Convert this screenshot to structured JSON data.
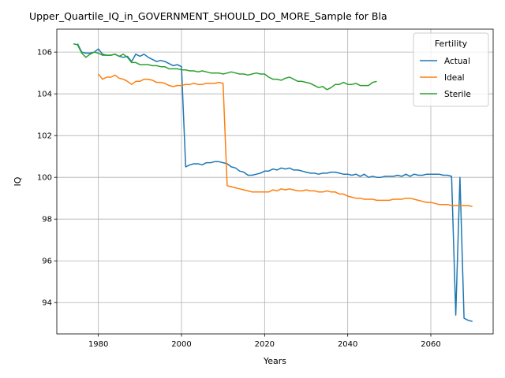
{
  "chart_data": {
    "type": "line",
    "title": "Upper_Quartile_IQ_in_GOVERNMENT_SHOULD_DO_MORE_Sample for Bla",
    "xlabel": "Years",
    "ylabel": "IQ",
    "xlim": [
      1970,
      2075
    ],
    "ylim": [
      92.5,
      107.1
    ],
    "x_ticks": [
      1980,
      2000,
      2020,
      2040,
      2060
    ],
    "y_ticks": [
      94,
      96,
      98,
      100,
      102,
      104,
      106
    ],
    "grid": true,
    "legend": {
      "title": "Fertility",
      "placement": "top-right"
    },
    "series": [
      {
        "name": "Actual",
        "color": "#1f77b4",
        "x": [
          1975,
          1976,
          1977,
          1978,
          1979,
          1980,
          1981,
          1982,
          1983,
          1984,
          1985,
          1986,
          1987,
          1988,
          1989,
          1990,
          1991,
          1992,
          1993,
          1994,
          1995,
          1996,
          1997,
          1998,
          1999,
          2000,
          2001,
          2002,
          2003,
          2004,
          2005,
          2006,
          2007,
          2008,
          2009,
          2010,
          2011,
          2012,
          2013,
          2014,
          2015,
          2016,
          2017,
          2018,
          2019,
          2020,
          2021,
          2022,
          2023,
          2024,
          2025,
          2026,
          2027,
          2028,
          2029,
          2030,
          2031,
          2032,
          2033,
          2034,
          2035,
          2036,
          2037,
          2038,
          2039,
          2040,
          2041,
          2042,
          2043,
          2044,
          2045,
          2046,
          2047,
          2048,
          2049,
          2050,
          2051,
          2052,
          2053,
          2054,
          2055,
          2056,
          2057,
          2058,
          2059,
          2060,
          2061,
          2062,
          2063,
          2064,
          2065,
          2066,
          2067,
          2068,
          2069,
          2070
        ],
        "values": [
          106.4,
          106.0,
          105.95,
          105.95,
          106.0,
          106.15,
          105.9,
          105.85,
          105.85,
          105.9,
          105.8,
          105.75,
          105.8,
          105.55,
          105.9,
          105.8,
          105.9,
          105.75,
          105.65,
          105.55,
          105.6,
          105.55,
          105.45,
          105.35,
          105.4,
          105.3,
          100.5,
          100.6,
          100.65,
          100.65,
          100.6,
          100.7,
          100.7,
          100.75,
          100.75,
          100.7,
          100.65,
          100.5,
          100.45,
          100.3,
          100.25,
          100.1,
          100.1,
          100.15,
          100.2,
          100.3,
          100.3,
          100.4,
          100.35,
          100.45,
          100.4,
          100.45,
          100.35,
          100.35,
          100.3,
          100.25,
          100.2,
          100.2,
          100.15,
          100.2,
          100.2,
          100.25,
          100.25,
          100.2,
          100.15,
          100.15,
          100.1,
          100.15,
          100.05,
          100.15,
          100.0,
          100.05,
          100.0,
          100.0,
          100.05,
          100.05,
          100.05,
          100.1,
          100.05,
          100.15,
          100.05,
          100.15,
          100.1,
          100.1,
          100.15,
          100.15,
          100.15,
          100.15,
          100.1,
          100.1,
          100.05,
          93.4,
          100.0,
          93.25,
          93.15,
          93.1
        ]
      },
      {
        "name": "Ideal",
        "color": "#ff7f0e",
        "x": [
          1980,
          1981,
          1982,
          1983,
          1984,
          1985,
          1986,
          1987,
          1988,
          1989,
          1990,
          1991,
          1992,
          1993,
          1994,
          1995,
          1996,
          1997,
          1998,
          1999,
          2000,
          2001,
          2002,
          2003,
          2004,
          2005,
          2006,
          2007,
          2008,
          2009,
          2010,
          2011,
          2012,
          2013,
          2014,
          2015,
          2016,
          2017,
          2018,
          2019,
          2020,
          2021,
          2022,
          2023,
          2024,
          2025,
          2026,
          2027,
          2028,
          2029,
          2030,
          2031,
          2032,
          2033,
          2034,
          2035,
          2036,
          2037,
          2038,
          2039,
          2040,
          2041,
          2042,
          2043,
          2044,
          2045,
          2046,
          2047,
          2048,
          2049,
          2050,
          2051,
          2052,
          2053,
          2054,
          2055,
          2056,
          2057,
          2058,
          2059,
          2060,
          2061,
          2062,
          2063,
          2064,
          2065,
          2066,
          2067,
          2068,
          2069,
          2070
        ],
        "values": [
          104.95,
          104.7,
          104.8,
          104.8,
          104.9,
          104.75,
          104.7,
          104.6,
          104.45,
          104.6,
          104.6,
          104.7,
          104.7,
          104.65,
          104.55,
          104.55,
          104.5,
          104.4,
          104.35,
          104.4,
          104.4,
          104.45,
          104.45,
          104.5,
          104.45,
          104.45,
          104.5,
          104.5,
          104.5,
          104.55,
          104.5,
          99.6,
          99.55,
          99.5,
          99.45,
          99.4,
          99.35,
          99.3,
          99.3,
          99.3,
          99.3,
          99.3,
          99.4,
          99.35,
          99.45,
          99.4,
          99.45,
          99.4,
          99.35,
          99.35,
          99.4,
          99.35,
          99.35,
          99.3,
          99.3,
          99.35,
          99.3,
          99.3,
          99.2,
          99.2,
          99.1,
          99.05,
          99.0,
          99.0,
          98.95,
          98.95,
          98.95,
          98.9,
          98.9,
          98.9,
          98.9,
          98.95,
          98.95,
          98.95,
          99.0,
          99.0,
          98.95,
          98.9,
          98.85,
          98.8,
          98.8,
          98.75,
          98.7,
          98.7,
          98.7,
          98.65,
          98.65,
          98.65,
          98.65,
          98.65,
          98.6
        ]
      },
      {
        "name": "Sterile",
        "color": "#2ca02c",
        "x": [
          1974,
          1975,
          1976,
          1977,
          1978,
          1979,
          1980,
          1981,
          1982,
          1983,
          1984,
          1985,
          1986,
          1987,
          1988,
          1989,
          1990,
          1991,
          1992,
          1993,
          1994,
          1995,
          1996,
          1997,
          1998,
          1999,
          2000,
          2001,
          2002,
          2003,
          2004,
          2005,
          2006,
          2007,
          2008,
          2009,
          2010,
          2011,
          2012,
          2013,
          2014,
          2015,
          2016,
          2017,
          2018,
          2019,
          2020,
          2021,
          2022,
          2023,
          2024,
          2025,
          2026,
          2027,
          2028,
          2029,
          2030,
          2031,
          2032,
          2033,
          2034,
          2035,
          2036,
          2037,
          2038,
          2039,
          2040,
          2041,
          2042,
          2043,
          2044,
          2045,
          2046,
          2047
        ],
        "values": [
          106.4,
          106.35,
          105.95,
          105.75,
          105.9,
          106.0,
          105.95,
          105.85,
          105.85,
          105.85,
          105.9,
          105.8,
          105.9,
          105.75,
          105.5,
          105.5,
          105.4,
          105.4,
          105.4,
          105.35,
          105.35,
          105.3,
          105.3,
          105.2,
          105.2,
          105.2,
          105.15,
          105.15,
          105.1,
          105.1,
          105.05,
          105.1,
          105.05,
          105.0,
          105.0,
          105.0,
          104.95,
          105.0,
          105.05,
          105.0,
          104.95,
          104.95,
          104.9,
          104.95,
          105.0,
          104.95,
          104.95,
          104.8,
          104.7,
          104.7,
          104.65,
          104.75,
          104.8,
          104.7,
          104.6,
          104.6,
          104.55,
          104.5,
          104.4,
          104.3,
          104.35,
          104.2,
          104.3,
          104.45,
          104.45,
          104.55,
          104.45,
          104.45,
          104.5,
          104.4,
          104.4,
          104.4,
          104.55,
          104.6
        ]
      }
    ]
  }
}
